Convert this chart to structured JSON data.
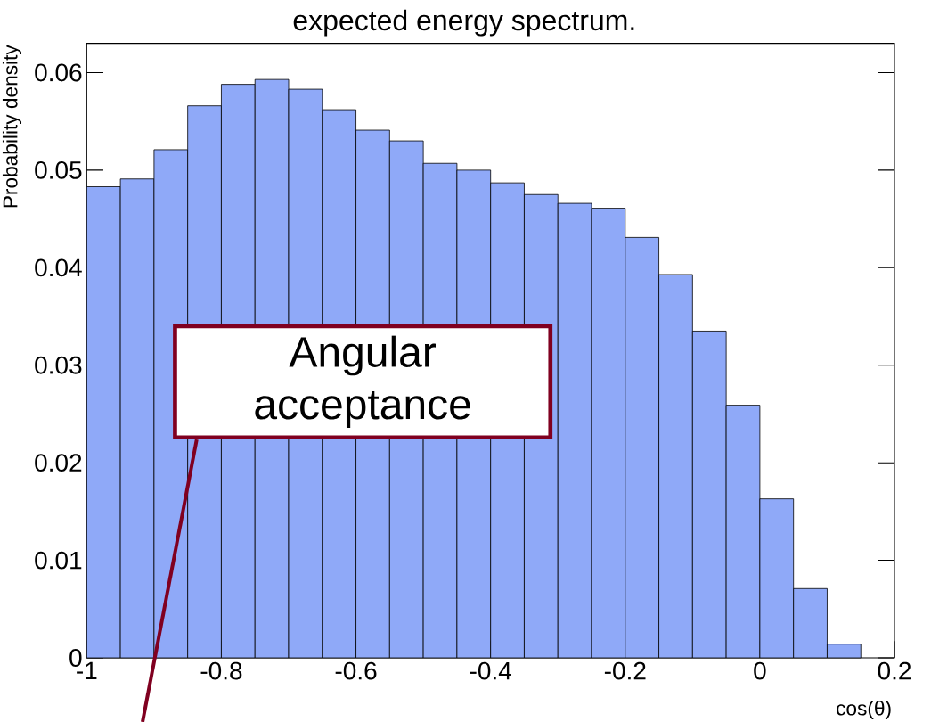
{
  "chart_data": {
    "type": "histogram",
    "title": "expected energy spectrum.",
    "xlabel": "cos(θ)",
    "ylabel": "Probability density",
    "bins": [
      -1,
      -0.95,
      -0.9,
      -0.85,
      -0.8,
      -0.75,
      -0.7,
      -0.65,
      -0.6,
      -0.55,
      -0.5,
      -0.45,
      -0.4,
      -0.35,
      -0.3,
      -0.25,
      -0.2,
      -0.15,
      -0.1,
      -0.05,
      0,
      0.05,
      0.1,
      0.15
    ],
    "values": [
      0.0483,
      0.0491,
      0.0521,
      0.0566,
      0.0588,
      0.0593,
      0.0583,
      0.0562,
      0.0541,
      0.053,
      0.0507,
      0.05,
      0.0487,
      0.0475,
      0.0466,
      0.0461,
      0.0431,
      0.0393,
      0.0335,
      0.0259,
      0.0163,
      0.0071,
      0.0014
    ],
    "color": "#8fa9f8",
    "xlim": [
      -1,
      0.2
    ],
    "ylim": [
      0,
      0.063
    ],
    "xticks": [
      -1,
      -0.8,
      -0.6,
      -0.4,
      -0.2,
      0,
      0.2
    ],
    "yticks": [
      0,
      0.01,
      0.02,
      0.03,
      0.04,
      0.05,
      0.06
    ],
    "grid": false,
    "annotations": [
      "Angular acceptance"
    ]
  }
}
